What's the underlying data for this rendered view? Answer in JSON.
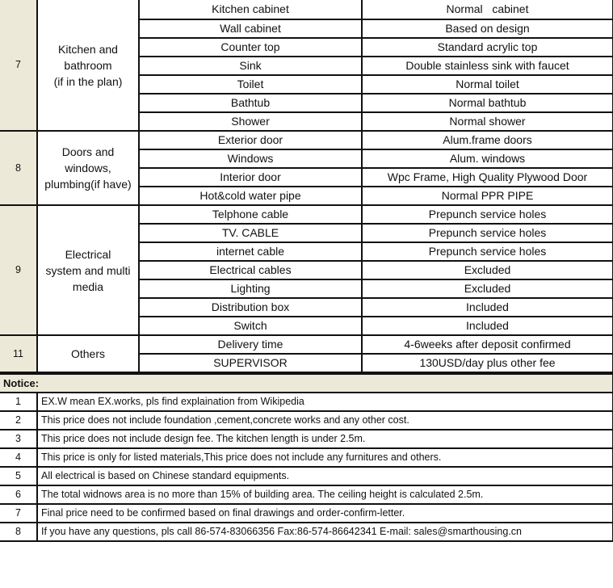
{
  "sections": [
    {
      "num": "7",
      "category": "Kitchen and\nbathroom\n(if in the plan)",
      "items": [
        {
          "item": "Kitchen cabinet",
          "detail": "Normal   cabinet"
        },
        {
          "item": "Wall cabinet",
          "detail": "Based on design"
        },
        {
          "item": "Counter top",
          "detail": "Standard acrylic top"
        },
        {
          "item": "Sink",
          "detail": "Double stainless sink with faucet"
        },
        {
          "item": "Toilet",
          "detail": "Normal toilet"
        },
        {
          "item": "Bathtub",
          "detail": "Normal bathtub"
        },
        {
          "item": "Shower",
          "detail": "Normal shower"
        }
      ]
    },
    {
      "num": "8",
      "category": "Doors and\nwindows,\nplumbing(if have)",
      "items": [
        {
          "item": "Exterior door",
          "detail": "Alum.frame doors"
        },
        {
          "item": "Windows",
          "detail": "Alum. windows"
        },
        {
          "item": "Interior door",
          "detail": "Wpc Frame, High Quality Plywood Door"
        },
        {
          "item": "Hot&cold water pipe",
          "detail": "Normal PPR PIPE"
        }
      ]
    },
    {
      "num": "9",
      "category": "Electrical\nsystem and multi\nmedia",
      "items": [
        {
          "item": "Telphone cable",
          "detail": "Prepunch service holes"
        },
        {
          "item": "TV. CABLE",
          "detail": "Prepunch service holes"
        },
        {
          "item": "internet cable",
          "detail": "Prepunch service holes"
        },
        {
          "item": "Electrical cables",
          "detail": "Excluded"
        },
        {
          "item": "Lighting",
          "detail": "Excluded"
        },
        {
          "item": "Distribution box",
          "detail": "Included"
        },
        {
          "item": "Switch",
          "detail": "Included"
        }
      ]
    },
    {
      "num": "11",
      "category": "Others",
      "items": [
        {
          "item": "Delivery time",
          "detail": "4-6weeks after deposit confirmed"
        },
        {
          "item": "SUPERVISOR",
          "detail": "130USD/day plus other fee"
        }
      ]
    }
  ],
  "notice": {
    "title": "Notice:",
    "items": [
      {
        "num": "1",
        "text": "EX.W mean EX.works, pls find explaination from Wikipedia"
      },
      {
        "num": "2",
        "text": "This price does not include foundation ,cement,concrete works and any other cost."
      },
      {
        "num": "3",
        "text": "This price does not include design fee. The kitchen length is under 2.5m."
      },
      {
        "num": "4",
        "text": "This price is only for listed materials,This price does not include any furnitures and others."
      },
      {
        "num": "5",
        "text": "All electrical is based on Chinese standard equipments."
      },
      {
        "num": "6",
        "text": "The total widnows area is no more than 15% of building area. The ceiling height is calculated 2.5m."
      },
      {
        "num": "7",
        "text": "Final price need to be confirmed based on final drawings and order-confirm-letter."
      },
      {
        "num": "8",
        "text": "If you have any questions, pls call 86-574-83066356 Fax:86-574-86642341 E-mail: sales@smarthousing.cn"
      }
    ]
  }
}
